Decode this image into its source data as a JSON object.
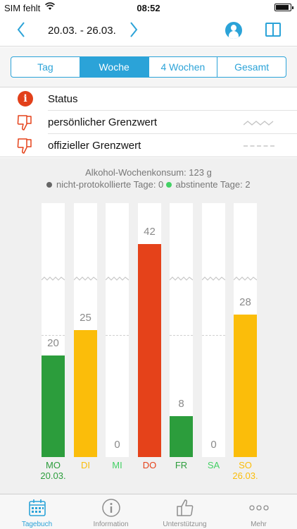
{
  "status_bar": {
    "carrier": "SIM fehlt",
    "time": "08:52",
    "battery_level": 0.9
  },
  "nav": {
    "date_range": "20.03. - 26.03.",
    "prev_icon": "chevron-left-icon",
    "next_icon": "chevron-right-icon",
    "profile_icon": "profile-icon",
    "book_icon": "book-icon"
  },
  "segments": [
    {
      "label": "Tag",
      "active": false
    },
    {
      "label": "Woche",
      "active": true
    },
    {
      "label": "4 Wochen",
      "active": false
    },
    {
      "label": "Gesamt",
      "active": false
    }
  ],
  "legend": {
    "status": "Status",
    "personal_limit": "persönlicher Grenzwert",
    "official_limit": "offizieller Grenzwert"
  },
  "summary": {
    "weekly": "Alkohol-Wochenkonsum: 123 g",
    "not_logged": "nicht-protokollierte Tage: 0",
    "abstinent": "abstinente Tage: 2"
  },
  "colors": {
    "accent": "#2ba3d8",
    "green": "#2c9d3c",
    "yellow": "#fbbd0a",
    "red": "#e5421a",
    "light_green": "#43d165"
  },
  "chart_data": {
    "type": "bar",
    "categories": [
      "MO",
      "DI",
      "MI",
      "DO",
      "FR",
      "SA",
      "SO"
    ],
    "values": [
      20,
      25,
      0,
      42,
      8,
      0,
      28
    ],
    "ylim": [
      0,
      50
    ],
    "official_limit": 24,
    "personal_limit": 35,
    "grid": false
  },
  "days": [
    {
      "label": "MO",
      "date": "20.03.",
      "value": 20,
      "status": "green"
    },
    {
      "label": "DI",
      "date": "",
      "value": 25,
      "status": "yellow"
    },
    {
      "label": "MI",
      "date": "",
      "value": 0,
      "status": "light_green"
    },
    {
      "label": "DO",
      "date": "",
      "value": 42,
      "status": "red"
    },
    {
      "label": "FR",
      "date": "",
      "value": 8,
      "status": "green"
    },
    {
      "label": "SA",
      "date": "",
      "value": 0,
      "status": "light_green"
    },
    {
      "label": "SO",
      "date": "26.03.",
      "value": 28,
      "status": "yellow"
    }
  ],
  "tabs": [
    {
      "label": "Tagebuch",
      "icon": "calendar-icon",
      "active": true
    },
    {
      "label": "Information",
      "icon": "info-icon",
      "active": false
    },
    {
      "label": "Unterstützung",
      "icon": "thumbs-up-icon",
      "active": false
    },
    {
      "label": "Mehr",
      "icon": "more-icon",
      "active": false
    }
  ]
}
